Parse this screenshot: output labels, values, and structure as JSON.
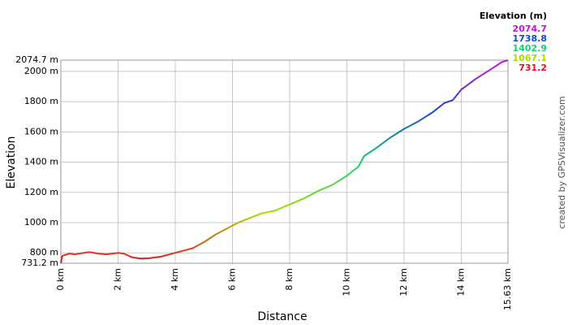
{
  "chart_data": {
    "type": "line",
    "x_label": "Distance",
    "y_label": "Elevation",
    "x": [
      0,
      0.05,
      0.3,
      0.5,
      0.8,
      1.0,
      1.3,
      1.6,
      2.0,
      2.2,
      2.5,
      2.8,
      3.1,
      3.5,
      3.8,
      4.2,
      4.6,
      5.0,
      5.4,
      5.8,
      6.2,
      6.6,
      7.0,
      7.5,
      8.0,
      8.5,
      9.0,
      9.5,
      10.0,
      10.4,
      10.6,
      11.0,
      11.5,
      12.0,
      12.5,
      13.0,
      13.4,
      13.7,
      14.0,
      14.5,
      15.0,
      15.4,
      15.63
    ],
    "values": [
      731.2,
      780,
      795,
      790,
      800,
      805,
      795,
      790,
      800,
      795,
      770,
      762,
      765,
      775,
      790,
      810,
      830,
      870,
      920,
      960,
      1000,
      1030,
      1060,
      1080,
      1120,
      1160,
      1210,
      1250,
      1310,
      1370,
      1440,
      1490,
      1560,
      1620,
      1670,
      1730,
      1790,
      1810,
      1880,
      1950,
      2010,
      2060,
      2074.7
    ],
    "xlim": [
      0,
      15.63
    ],
    "ylim": [
      731.2,
      2074.7
    ],
    "xticks": [
      {
        "value": 0,
        "label": "0 km"
      },
      {
        "value": 2,
        "label": "2 km"
      },
      {
        "value": 4,
        "label": "4 km"
      },
      {
        "value": 6,
        "label": "6 km"
      },
      {
        "value": 8,
        "label": "8 km"
      },
      {
        "value": 10,
        "label": "10 km"
      },
      {
        "value": 12,
        "label": "12 km"
      },
      {
        "value": 14,
        "label": "14 km"
      },
      {
        "value": 15.63,
        "label": "15.63 km"
      }
    ],
    "yticks": [
      {
        "value": 731.2,
        "label": "731.2 m"
      },
      {
        "value": 800,
        "label": "800 m"
      },
      {
        "value": 1000,
        "label": "1000 m"
      },
      {
        "value": 1200,
        "label": "1200 m"
      },
      {
        "value": 1400,
        "label": "1400 m"
      },
      {
        "value": 1600,
        "label": "1600 m"
      },
      {
        "value": 1800,
        "label": "1800 m"
      },
      {
        "value": 2000,
        "label": "2000 m"
      },
      {
        "value": 2074.7,
        "label": "2074.7 m"
      }
    ],
    "grid": true,
    "colorbar": {
      "title": "Elevation (m)",
      "ticks": [
        2074.7,
        1738.8,
        1402.9,
        1067.1,
        731.2
      ],
      "colors": [
        "#d010d8",
        "#1848c8",
        "#10d078",
        "#a8dc00",
        "#e0102a"
      ]
    },
    "credit": "created by GPSVisualizer.com"
  }
}
